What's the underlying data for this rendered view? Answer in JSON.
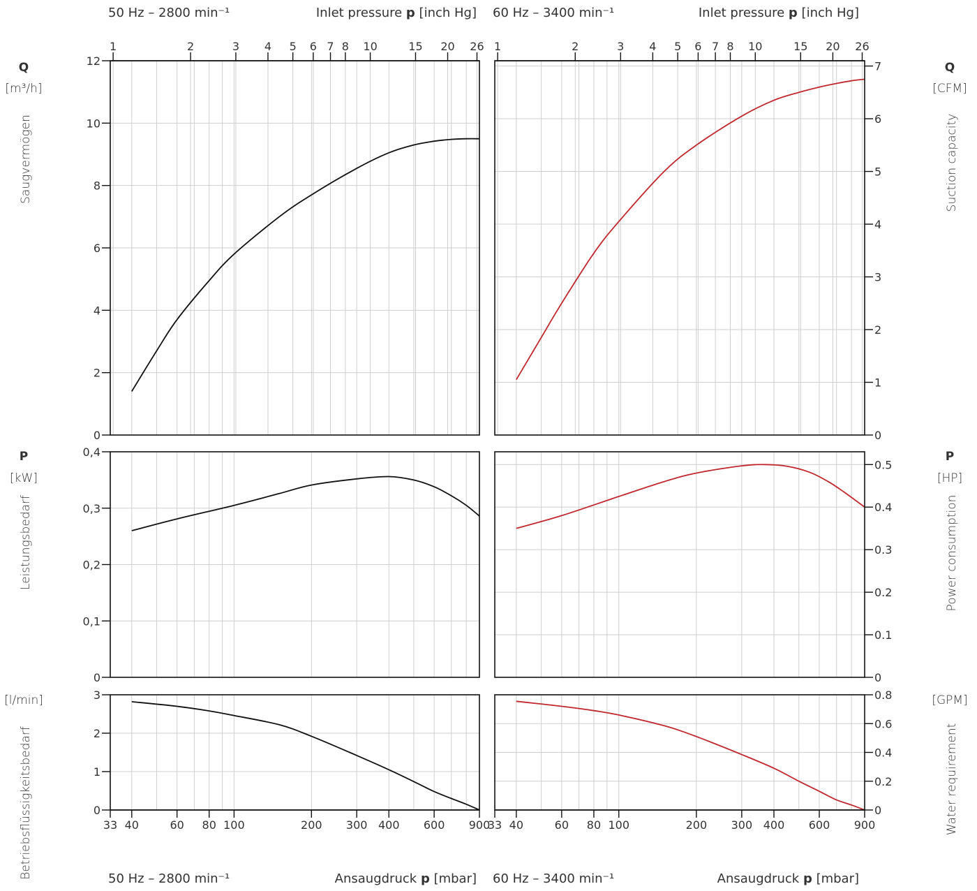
{
  "headers": {
    "top_left_freq": "50 Hz – 2800 min⁻¹",
    "top_left_axis": "Inlet pressure",
    "top_right_freq": "60 Hz – 3400 min⁻¹",
    "top_right_axis": "Inlet pressure",
    "bottom_left_freq": "50 Hz – 2800 min⁻¹",
    "bottom_left_axis": "Ansaugdruck",
    "bottom_right_freq": "60 Hz – 3400 min⁻¹",
    "bottom_right_axis": "Ansaugdruck",
    "p_symbol": "p",
    "unit_inch_hg": "[inch Hg]",
    "unit_mbar": "[mbar]"
  },
  "left_labels": {
    "q_symbol": "Q",
    "q_unit": "[m³/h]",
    "q_name": "Saugvermögen",
    "p_symbol": "P",
    "p_unit": "[kW]",
    "p_name": "Leistungsbedarf",
    "w_unit": "[l/min]",
    "w_name": "Betriebsflüssigkeitsbedarf"
  },
  "right_labels": {
    "q_symbol": "Q",
    "q_unit": "[CFM]",
    "q_name": "Suction capacity",
    "p_symbol": "P",
    "p_unit": "[HP]",
    "p_name": "Power consumption",
    "w_unit": "[GPM]",
    "w_name": "Water requirement"
  },
  "chart_data": {
    "type": "line",
    "x_scale": "log",
    "x_unit": "mbar",
    "x_range": [
      33,
      900
    ],
    "mbar_ticks": [
      33,
      40,
      60,
      80,
      100,
      200,
      300,
      400,
      600,
      900
    ],
    "mbar_gridlines": [
      33,
      40,
      50,
      60,
      70,
      80,
      90,
      100,
      200,
      300,
      400,
      500,
      600,
      700,
      800,
      900
    ],
    "inch_hg_ticks": [
      1,
      2,
      3,
      4,
      5,
      6,
      7,
      8,
      10,
      15,
      20,
      26
    ],
    "line_colors": {
      "50hz": "#111111",
      "60hz": "#c0282d"
    },
    "panels": [
      {
        "id": "suction-50hz",
        "ylabel": "Saugvermögen",
        "y_unit": "m³/h",
        "ylim": [
          0,
          12
        ],
        "y_ticks": [
          0,
          2,
          4,
          6,
          8,
          10,
          12
        ],
        "y_tick_labels": [
          "0",
          "2",
          "4",
          "6",
          "8",
          "10",
          "12"
        ],
        "series": [
          {
            "x": [
              40,
              50,
              60,
              80,
              100,
              150,
              200,
              300,
              400,
              500,
              600,
              700,
              800,
              900
            ],
            "y": [
              1.4,
              2.7,
              3.7,
              4.95,
              5.8,
              7.0,
              7.7,
              8.55,
              9.05,
              9.3,
              9.42,
              9.48,
              9.5,
              9.5
            ]
          }
        ]
      },
      {
        "id": "suction-60hz",
        "ylabel": "Suction capacity",
        "y_unit": "CFM",
        "ylim": [
          0,
          7.1
        ],
        "y_ticks": [
          0,
          1,
          2,
          3,
          4,
          5,
          6,
          7
        ],
        "y_tick_labels": [
          "0",
          "1",
          "2",
          "3",
          "4",
          "5",
          "6",
          "7"
        ],
        "series": [
          {
            "x": [
              40,
              50,
              60,
              80,
              100,
              150,
              200,
              300,
              400,
              500,
              600,
              700,
              800,
              900
            ],
            "y": [
              1.05,
              1.85,
              2.5,
              3.45,
              4.05,
              5.0,
              5.5,
              6.05,
              6.35,
              6.5,
              6.6,
              6.67,
              6.72,
              6.75
            ]
          }
        ]
      },
      {
        "id": "power-50hz",
        "ylabel": "Leistungsbedarf",
        "y_unit": "kW",
        "ylim": [
          0,
          0.4
        ],
        "y_ticks": [
          0,
          0.1,
          0.2,
          0.3,
          0.4
        ],
        "y_tick_labels": [
          "0",
          "0,1",
          "0,2",
          "0,3",
          "0,4"
        ],
        "series": [
          {
            "x": [
              40,
              60,
              100,
              150,
              200,
              300,
              400,
              500,
              600,
              700,
              800,
              900
            ],
            "y": [
              0.26,
              0.281,
              0.305,
              0.326,
              0.341,
              0.352,
              0.356,
              0.35,
              0.338,
              0.322,
              0.305,
              0.286
            ]
          }
        ]
      },
      {
        "id": "power-60hz",
        "ylabel": "Power consumption",
        "y_unit": "HP",
        "ylim": [
          0,
          0.53
        ],
        "y_ticks": [
          0,
          0.1,
          0.2,
          0.3,
          0.4,
          0.5
        ],
        "y_tick_labels": [
          "0",
          "0.1",
          "0.2",
          "0.3",
          "0.4",
          "0.5"
        ],
        "series": [
          {
            "x": [
              40,
              60,
              100,
              150,
              200,
              300,
              370,
              450,
              550,
              650,
              750,
              900
            ],
            "y": [
              0.35,
              0.38,
              0.425,
              0.46,
              0.48,
              0.497,
              0.5,
              0.496,
              0.482,
              0.46,
              0.435,
              0.4
            ]
          }
        ]
      },
      {
        "id": "water-50hz",
        "ylabel": "Betriebsflüssigkeitsbedarf",
        "y_unit": "l/min",
        "ylim": [
          0,
          3
        ],
        "y_ticks": [
          0,
          1,
          2,
          3
        ],
        "y_tick_labels": [
          "0",
          "1",
          "2",
          "3"
        ],
        "series": [
          {
            "x": [
              40,
              60,
              80,
              100,
              150,
              200,
              300,
              400,
              500,
              600,
              700,
              800,
              900
            ],
            "y": [
              2.82,
              2.7,
              2.58,
              2.46,
              2.22,
              1.92,
              1.42,
              1.05,
              0.74,
              0.48,
              0.3,
              0.15,
              0.0
            ]
          }
        ]
      },
      {
        "id": "water-60hz",
        "ylabel": "Water requirement",
        "y_unit": "GPM",
        "ylim": [
          0,
          0.8
        ],
        "y_ticks": [
          0,
          0.2,
          0.4,
          0.6,
          0.8
        ],
        "y_tick_labels": [
          "0",
          "0.2",
          "0.4",
          "0.6",
          "0.8"
        ],
        "series": [
          {
            "x": [
              40,
              60,
              80,
              100,
              150,
              200,
              300,
              400,
              500,
              600,
              700,
              800,
              900
            ],
            "y": [
              0.755,
              0.72,
              0.69,
              0.66,
              0.585,
              0.51,
              0.385,
              0.29,
              0.2,
              0.13,
              0.07,
              0.035,
              0.0
            ]
          }
        ]
      }
    ]
  }
}
